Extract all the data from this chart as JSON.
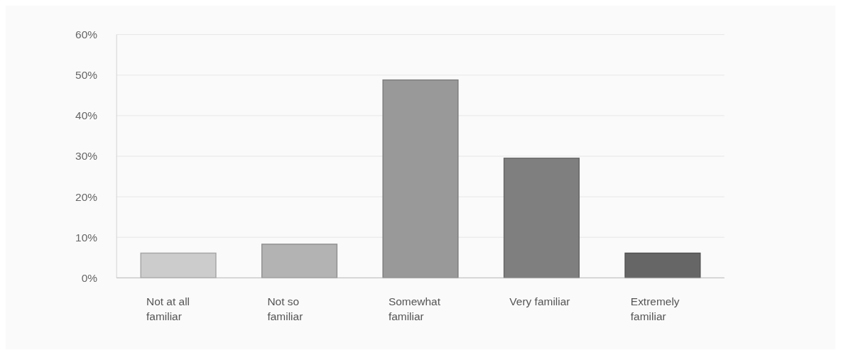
{
  "chart_data": {
    "type": "bar",
    "categories": [
      "Not at all familiar",
      "Not so familiar",
      "Somewhat familiar",
      "Very familiar",
      "Extremely familiar"
    ],
    "values": [
      6.1,
      8.3,
      48.8,
      29.5,
      6.1
    ],
    "colors": [
      "#cccccc",
      "#b3b3b3",
      "#999999",
      "#7f7f7f",
      "#666666"
    ],
    "ylim": [
      0,
      60
    ],
    "yticks": [
      {
        "value": 0,
        "label": "0%"
      },
      {
        "value": 10,
        "label": "10%"
      },
      {
        "value": 20,
        "label": "20%"
      },
      {
        "value": 30,
        "label": "30%"
      },
      {
        "value": 40,
        "label": "40%"
      },
      {
        "value": 50,
        "label": "50%"
      },
      {
        "value": 60,
        "label": "60%"
      }
    ],
    "grid": "y"
  }
}
